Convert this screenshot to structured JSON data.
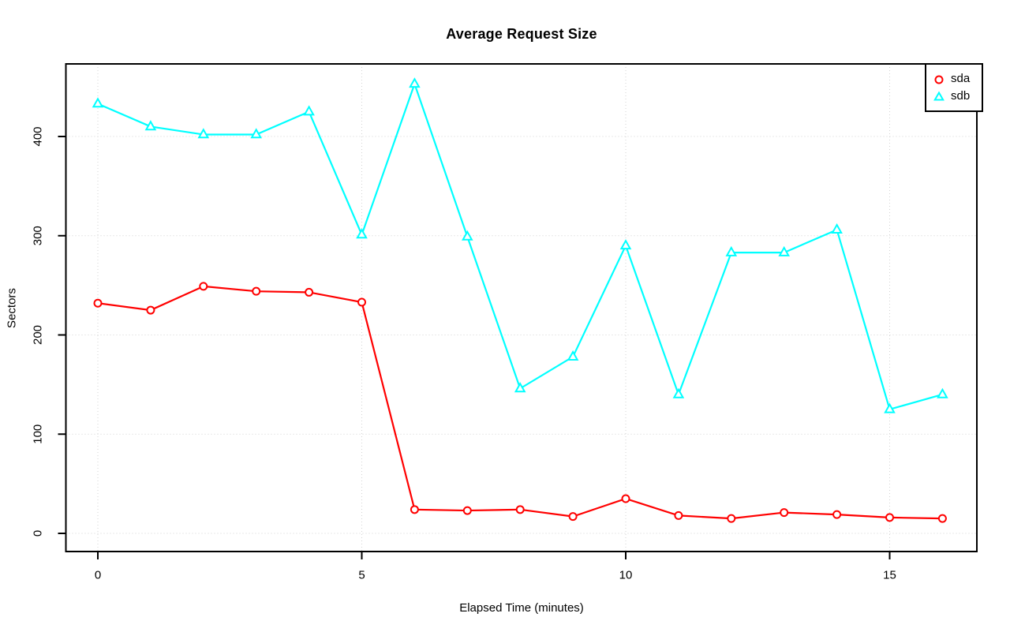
{
  "page": {
    "background": "#ffffff"
  },
  "chart_data": {
    "type": "line",
    "title": "Average Request Size",
    "xlabel": "Elapsed Time (minutes)",
    "ylabel": "Sectors",
    "x": [
      0,
      1,
      2,
      3,
      4,
      5,
      6,
      7,
      8,
      9,
      10,
      11,
      12,
      13,
      14,
      15,
      16
    ],
    "series": [
      {
        "name": "sda",
        "color": "#FF0000",
        "marker": "circle",
        "values": [
          232,
          225,
          249,
          244,
          243,
          233,
          24,
          23,
          24,
          17,
          35,
          18,
          15,
          21,
          19,
          16,
          15
        ]
      },
      {
        "name": "sdb",
        "color": "#00FFFF",
        "marker": "triangle",
        "values": [
          433,
          410,
          402,
          402,
          425,
          301,
          453,
          299,
          146,
          178,
          290,
          140,
          283,
          283,
          306,
          125,
          140
        ]
      }
    ],
    "xticks": [
      0,
      5,
      10,
      15
    ],
    "yticks": [
      0,
      100,
      200,
      300,
      400
    ],
    "xlim": [
      0,
      16
    ],
    "ylim": [
      0,
      475
    ],
    "grid": true,
    "grid_color": "#d3d3d3",
    "legend_position": "topright",
    "legend": [
      "sda",
      "sdb"
    ]
  }
}
